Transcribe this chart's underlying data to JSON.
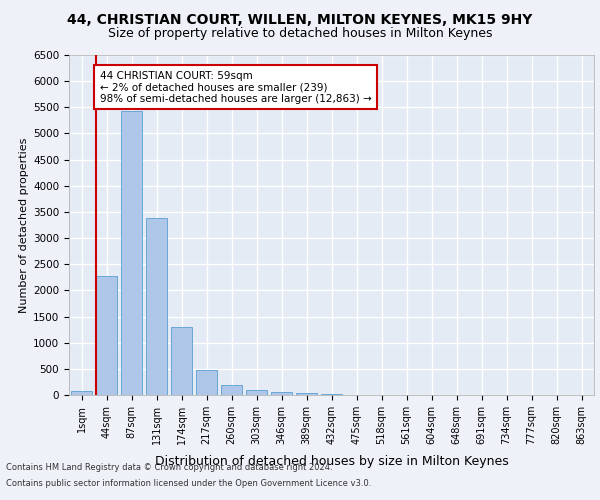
{
  "title1": "44, CHRISTIAN COURT, WILLEN, MILTON KEYNES, MK15 9HY",
  "title2": "Size of property relative to detached houses in Milton Keynes",
  "xlabel": "Distribution of detached houses by size in Milton Keynes",
  "ylabel": "Number of detached properties",
  "categories": [
    "1sqm",
    "44sqm",
    "87sqm",
    "131sqm",
    "174sqm",
    "217sqm",
    "260sqm",
    "303sqm",
    "346sqm",
    "389sqm",
    "432sqm",
    "475sqm",
    "518sqm",
    "561sqm",
    "604sqm",
    "648sqm",
    "691sqm",
    "734sqm",
    "777sqm",
    "820sqm",
    "863sqm"
  ],
  "values": [
    75,
    2280,
    5420,
    3390,
    1300,
    480,
    195,
    95,
    55,
    30,
    15,
    8,
    5,
    3,
    2,
    1,
    1,
    1,
    0,
    0,
    0
  ],
  "bar_color": "#aec6e8",
  "bar_edge_color": "#5a9fd4",
  "annotation_text": "44 CHRISTIAN COURT: 59sqm\n← 2% of detached houses are smaller (239)\n98% of semi-detached houses are larger (12,863) →",
  "annotation_box_color": "#ffffff",
  "annotation_box_edge": "#cc0000",
  "property_line_color": "#cc0000",
  "background_color": "#eef2f8",
  "axes_background": "#e4ebf5",
  "grid_color": "#ffffff",
  "footer1": "Contains HM Land Registry data © Crown copyright and database right 2024.",
  "footer2": "Contains public sector information licensed under the Open Government Licence v3.0.",
  "ylim": [
    0,
    6500
  ],
  "title1_fontsize": 10,
  "title2_fontsize": 9,
  "ylabel_fontsize": 8,
  "xlabel_fontsize": 9,
  "property_line_bar_index": 1
}
